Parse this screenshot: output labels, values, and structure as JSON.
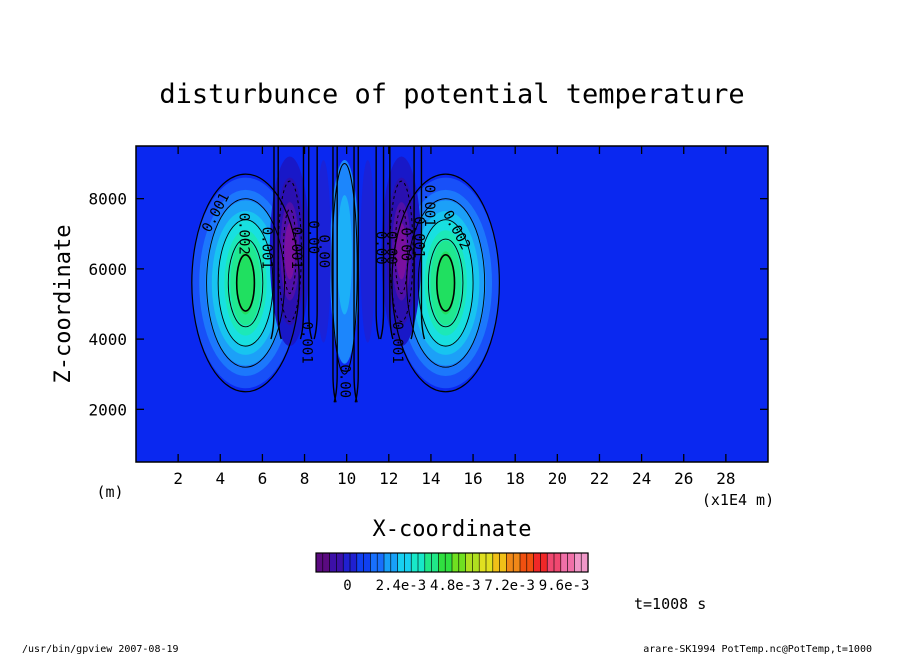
{
  "chart_data": {
    "type": "heatmap",
    "title": "disturbunce of potential temperature",
    "xlabel": "X-coordinate",
    "ylabel": "Z-coordinate",
    "x_unit": "(m)",
    "x_scale_note": "(x1E4 m)",
    "xlim": [
      0,
      30
    ],
    "ylim": [
      500,
      9500
    ],
    "x_ticks": [
      2,
      4,
      6,
      8,
      10,
      12,
      14,
      16,
      18,
      20,
      22,
      24,
      26,
      28
    ],
    "y_ticks": [
      2000,
      4000,
      6000,
      8000
    ],
    "contour_labels": [
      {
        "text": "0.001",
        "x": 3.8,
        "z": 7600,
        "angle": -62
      },
      {
        "text": "0.002",
        "x": 5.1,
        "z": 7000,
        "angle": 90
      },
      {
        "text": "0.001",
        "x": 6.2,
        "z": 6600,
        "angle": 90
      },
      {
        "text": "0.001",
        "x": 7.6,
        "z": 6600,
        "angle": 90
      },
      {
        "text": "0.00",
        "x": 8.4,
        "z": 6900,
        "angle": 90
      },
      {
        "text": "0.00",
        "x": 8.9,
        "z": 6500,
        "angle": 90
      },
      {
        "text": "0.001",
        "x": 8.1,
        "z": 3900,
        "angle": 90
      },
      {
        "text": "0.00",
        "x": 9.9,
        "z": 2800,
        "angle": 90
      },
      {
        "text": "0.00",
        "x": 11.6,
        "z": 6600,
        "angle": 90
      },
      {
        "text": "0.00",
        "x": 12.1,
        "z": 6600,
        "angle": 90
      },
      {
        "text": "0.001",
        "x": 12.4,
        "z": 3900,
        "angle": 90
      },
      {
        "text": "0.00",
        "x": 12.8,
        "z": 6700,
        "angle": 90
      },
      {
        "text": "0.001",
        "x": 13.4,
        "z": 6900,
        "angle": 90
      },
      {
        "text": "0.001",
        "x": 13.9,
        "z": 7800,
        "angle": 90
      },
      {
        "text": "0.002",
        "x": 15.2,
        "z": 7100,
        "angle": 62
      }
    ],
    "colorbar": {
      "min": -0.0012,
      "max": 0.0108,
      "tick_labels": [
        "0",
        "2.4e-3",
        "4.8e-3",
        "7.2e-3",
        "9.6e-3"
      ]
    }
  },
  "annotations": {
    "time": "t=1008 s",
    "footer_left": "/usr/bin/gpview   2007-08-19",
    "footer_right": "arare-SK1994_PotTemp.nc@PotTemp,t=1000"
  },
  "colors": {
    "background_field": "#0a28f0",
    "cold_anomaly": "#7a10a0",
    "warm_peak": "#20e060"
  }
}
